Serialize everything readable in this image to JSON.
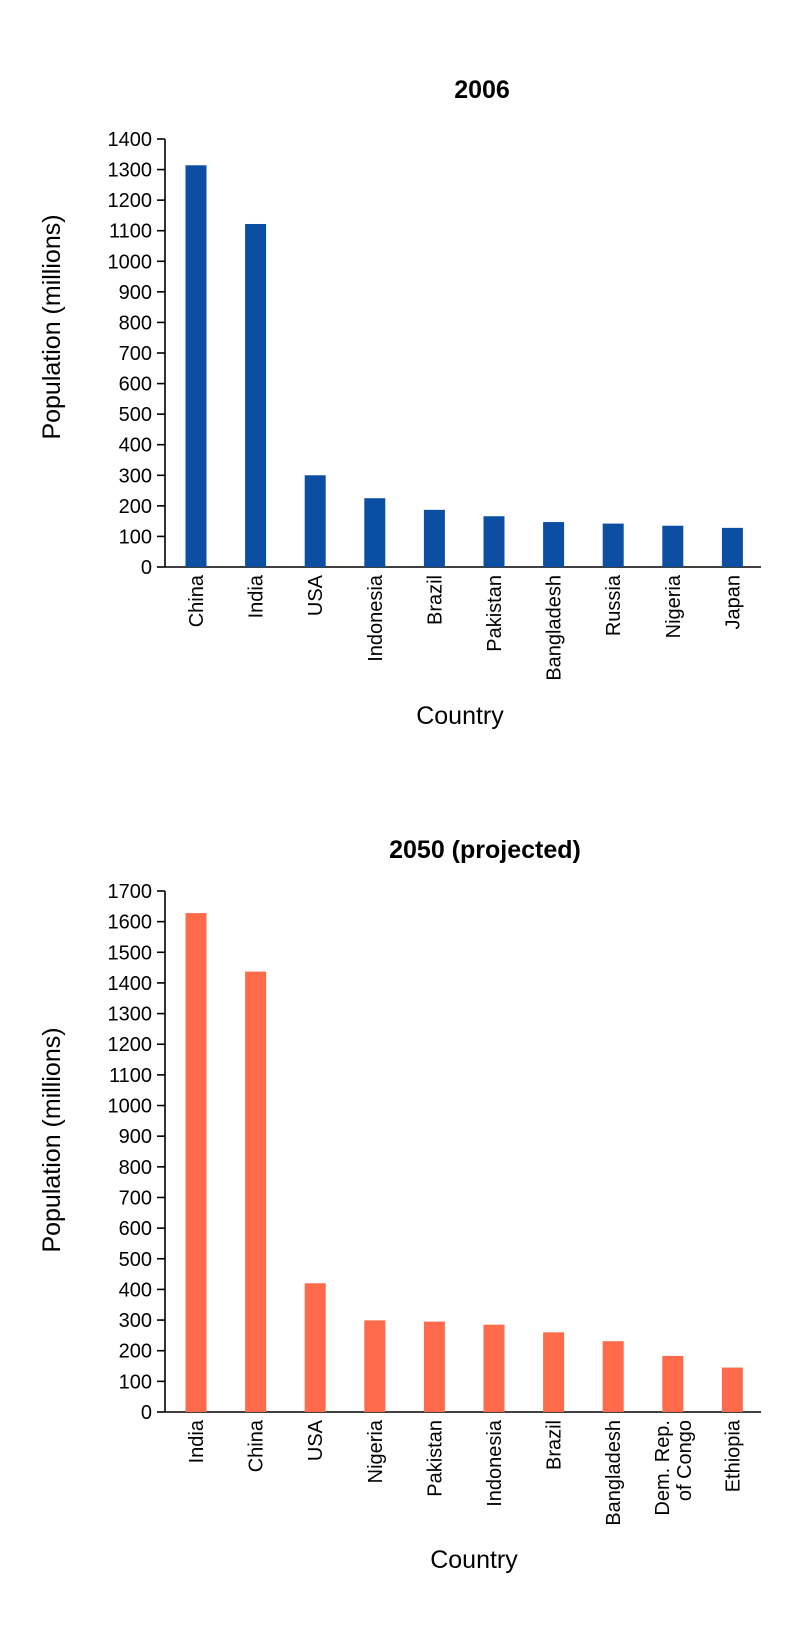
{
  "chart_data": [
    {
      "type": "bar",
      "title": "2006",
      "xlabel": "Country",
      "ylabel": "Population (millions)",
      "ylim": [
        0,
        1400
      ],
      "ytick_step": 100,
      "grid": false,
      "color": "#0B4EA2",
      "categories": [
        "China",
        "India",
        "USA",
        "Indonesia",
        "Brazil",
        "Pakistan",
        "Bangladesh",
        "Russia",
        "Nigeria",
        "Japan"
      ],
      "values": [
        1314,
        1122,
        300,
        225,
        187,
        166,
        147,
        142,
        135,
        128
      ]
    },
    {
      "type": "bar",
      "title": "2050 (projected)",
      "xlabel": "Country",
      "ylabel": "Population (millions)",
      "ylim": [
        0,
        1700
      ],
      "ytick_step": 100,
      "grid": false,
      "color": "#FF6B4A",
      "categories": [
        "India",
        "China",
        "USA",
        "Nigeria",
        "Pakistan",
        "Indonesia",
        "Brazil",
        "Bangladesh",
        "Dem. Rep. of Congo",
        "Ethiopia"
      ],
      "category_lines": [
        [
          "India"
        ],
        [
          "China"
        ],
        [
          "USA"
        ],
        [
          "Nigeria"
        ],
        [
          "Pakistan"
        ],
        [
          "Indonesia"
        ],
        [
          "Brazil"
        ],
        [
          "Bangladesh"
        ],
        [
          "Dem. Rep.",
          "of Congo"
        ],
        [
          "Ethiopia"
        ]
      ],
      "values": [
        1628,
        1437,
        420,
        299,
        295,
        285,
        260,
        231,
        183,
        145
      ]
    }
  ]
}
